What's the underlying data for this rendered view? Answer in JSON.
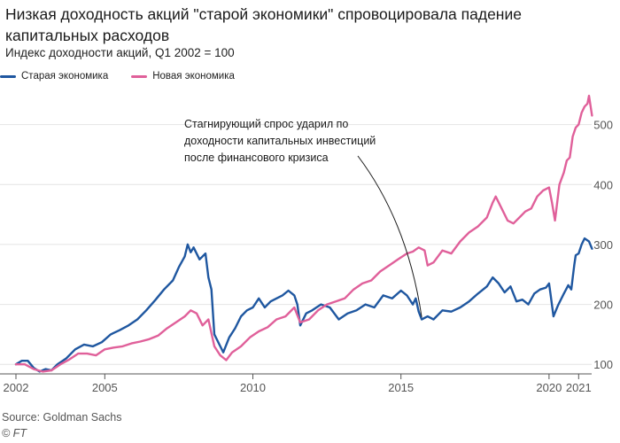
{
  "title": "Низкая доходность акций \"старой экономики\" спровоцировала падение капитальных расходов",
  "subtitle": "Индекс доходности акций, Q1 2002 = 100",
  "source": "Source: Goldman Sachs",
  "credit": "© FT",
  "colors": {
    "old": "#1f57a0",
    "new": "#e0609a",
    "grid": "#e4e4e4"
  },
  "chart_data": {
    "type": "line",
    "title": "Низкая доходность акций \"старой экономики\" спровоцировала падение капитальных расходов",
    "ylabel": "Индекс доходности акций, Q1 2002 = 100",
    "xlim": [
      2002,
      2021.2
    ],
    "ylim": [
      90,
      560
    ],
    "x_ticks": [
      2002,
      2005,
      2010,
      2015,
      2020,
      2021
    ],
    "y_ticks": [
      100,
      200,
      300,
      400,
      500
    ],
    "grid": true,
    "legend_position": "top-left",
    "series": [
      {
        "name": "Старая экономика",
        "color": "#1f57a0",
        "points": [
          [
            2002.0,
            100
          ],
          [
            2002.2,
            106
          ],
          [
            2002.4,
            106
          ],
          [
            2002.6,
            94
          ],
          [
            2002.8,
            88
          ],
          [
            2003.0,
            92
          ],
          [
            2003.2,
            90
          ],
          [
            2003.4,
            100
          ],
          [
            2003.7,
            110
          ],
          [
            2004.0,
            125
          ],
          [
            2004.3,
            133
          ],
          [
            2004.6,
            130
          ],
          [
            2004.9,
            137
          ],
          [
            2005.2,
            150
          ],
          [
            2005.5,
            157
          ],
          [
            2005.8,
            165
          ],
          [
            2006.1,
            175
          ],
          [
            2006.4,
            190
          ],
          [
            2006.7,
            207
          ],
          [
            2007.0,
            225
          ],
          [
            2007.3,
            240
          ],
          [
            2007.5,
            262
          ],
          [
            2007.7,
            280
          ],
          [
            2007.8,
            300
          ],
          [
            2007.9,
            287
          ],
          [
            2008.0,
            295
          ],
          [
            2008.2,
            275
          ],
          [
            2008.4,
            285
          ],
          [
            2008.5,
            245
          ],
          [
            2008.6,
            225
          ],
          [
            2008.7,
            150
          ],
          [
            2008.9,
            130
          ],
          [
            2009.0,
            120
          ],
          [
            2009.2,
            145
          ],
          [
            2009.4,
            160
          ],
          [
            2009.6,
            180
          ],
          [
            2009.8,
            190
          ],
          [
            2010.0,
            195
          ],
          [
            2010.2,
            210
          ],
          [
            2010.4,
            195
          ],
          [
            2010.6,
            205
          ],
          [
            2010.8,
            210
          ],
          [
            2011.0,
            215
          ],
          [
            2011.2,
            223
          ],
          [
            2011.4,
            215
          ],
          [
            2011.5,
            200
          ],
          [
            2011.6,
            165
          ],
          [
            2011.8,
            185
          ],
          [
            2012.0,
            190
          ],
          [
            2012.3,
            200
          ],
          [
            2012.6,
            195
          ],
          [
            2012.9,
            175
          ],
          [
            2013.2,
            185
          ],
          [
            2013.5,
            190
          ],
          [
            2013.8,
            200
          ],
          [
            2014.1,
            195
          ],
          [
            2014.4,
            215
          ],
          [
            2014.7,
            210
          ],
          [
            2015.0,
            223
          ],
          [
            2015.2,
            215
          ],
          [
            2015.4,
            200
          ],
          [
            2015.5,
            210
          ],
          [
            2015.6,
            188
          ],
          [
            2015.7,
            175
          ],
          [
            2015.9,
            180
          ],
          [
            2016.1,
            175
          ],
          [
            2016.4,
            190
          ],
          [
            2016.7,
            188
          ],
          [
            2017.0,
            195
          ],
          [
            2017.3,
            205
          ],
          [
            2017.6,
            218
          ],
          [
            2017.9,
            230
          ],
          [
            2018.1,
            245
          ],
          [
            2018.3,
            235
          ],
          [
            2018.5,
            220
          ],
          [
            2018.7,
            230
          ],
          [
            2018.9,
            205
          ],
          [
            2019.1,
            208
          ],
          [
            2019.3,
            200
          ],
          [
            2019.5,
            218
          ],
          [
            2019.7,
            225
          ],
          [
            2019.9,
            228
          ],
          [
            2020.0,
            235
          ],
          [
            2020.05,
            218
          ],
          [
            2020.15,
            180
          ],
          [
            2020.3,
            198
          ],
          [
            2020.5,
            218
          ],
          [
            2020.65,
            232
          ],
          [
            2020.75,
            225
          ],
          [
            2020.85,
            265
          ],
          [
            2020.9,
            282
          ],
          [
            2021.0,
            285
          ],
          [
            2021.1,
            300
          ],
          [
            2021.2,
            310
          ],
          [
            2021.35,
            305
          ],
          [
            2021.45,
            293
          ]
        ]
      },
      {
        "name": "Новая экономика",
        "color": "#e0609a",
        "points": [
          [
            2002.0,
            100
          ],
          [
            2002.3,
            100
          ],
          [
            2002.6,
            92
          ],
          [
            2002.9,
            88
          ],
          [
            2003.2,
            90
          ],
          [
            2003.5,
            100
          ],
          [
            2003.8,
            108
          ],
          [
            2004.1,
            118
          ],
          [
            2004.4,
            118
          ],
          [
            2004.7,
            115
          ],
          [
            2005.0,
            125
          ],
          [
            2005.3,
            128
          ],
          [
            2005.6,
            130
          ],
          [
            2005.9,
            135
          ],
          [
            2006.2,
            138
          ],
          [
            2006.5,
            142
          ],
          [
            2006.8,
            148
          ],
          [
            2007.1,
            160
          ],
          [
            2007.4,
            170
          ],
          [
            2007.7,
            180
          ],
          [
            2007.9,
            190
          ],
          [
            2008.1,
            185
          ],
          [
            2008.3,
            165
          ],
          [
            2008.5,
            175
          ],
          [
            2008.7,
            130
          ],
          [
            2008.9,
            115
          ],
          [
            2009.1,
            107
          ],
          [
            2009.3,
            120
          ],
          [
            2009.6,
            130
          ],
          [
            2009.9,
            145
          ],
          [
            2010.2,
            155
          ],
          [
            2010.5,
            162
          ],
          [
            2010.8,
            175
          ],
          [
            2011.1,
            180
          ],
          [
            2011.4,
            195
          ],
          [
            2011.6,
            170
          ],
          [
            2011.9,
            175
          ],
          [
            2012.2,
            190
          ],
          [
            2012.5,
            200
          ],
          [
            2012.8,
            205
          ],
          [
            2013.1,
            210
          ],
          [
            2013.4,
            225
          ],
          [
            2013.7,
            235
          ],
          [
            2014.0,
            240
          ],
          [
            2014.3,
            255
          ],
          [
            2014.6,
            265
          ],
          [
            2014.9,
            275
          ],
          [
            2015.2,
            285
          ],
          [
            2015.4,
            288
          ],
          [
            2015.6,
            295
          ],
          [
            2015.8,
            290
          ],
          [
            2015.9,
            265
          ],
          [
            2016.1,
            270
          ],
          [
            2016.4,
            290
          ],
          [
            2016.7,
            285
          ],
          [
            2017.0,
            305
          ],
          [
            2017.3,
            320
          ],
          [
            2017.6,
            330
          ],
          [
            2017.9,
            345
          ],
          [
            2018.1,
            370
          ],
          [
            2018.2,
            380
          ],
          [
            2018.4,
            360
          ],
          [
            2018.6,
            340
          ],
          [
            2018.8,
            335
          ],
          [
            2019.0,
            345
          ],
          [
            2019.2,
            355
          ],
          [
            2019.4,
            360
          ],
          [
            2019.6,
            380
          ],
          [
            2019.8,
            390
          ],
          [
            2020.0,
            395
          ],
          [
            2020.1,
            370
          ],
          [
            2020.2,
            340
          ],
          [
            2020.35,
            400
          ],
          [
            2020.5,
            420
          ],
          [
            2020.6,
            440
          ],
          [
            2020.7,
            445
          ],
          [
            2020.8,
            480
          ],
          [
            2020.9,
            495
          ],
          [
            2021.0,
            500
          ],
          [
            2021.1,
            520
          ],
          [
            2021.2,
            530
          ],
          [
            2021.3,
            535
          ],
          [
            2021.35,
            548
          ],
          [
            2021.45,
            515
          ]
        ]
      }
    ],
    "annotation": {
      "lines": [
        "Стагнирующий спрос ударил по",
        "доходности капитальных инвестиций",
        "после финансового кризиса"
      ],
      "target": [
        2015.7,
        170
      ]
    }
  }
}
